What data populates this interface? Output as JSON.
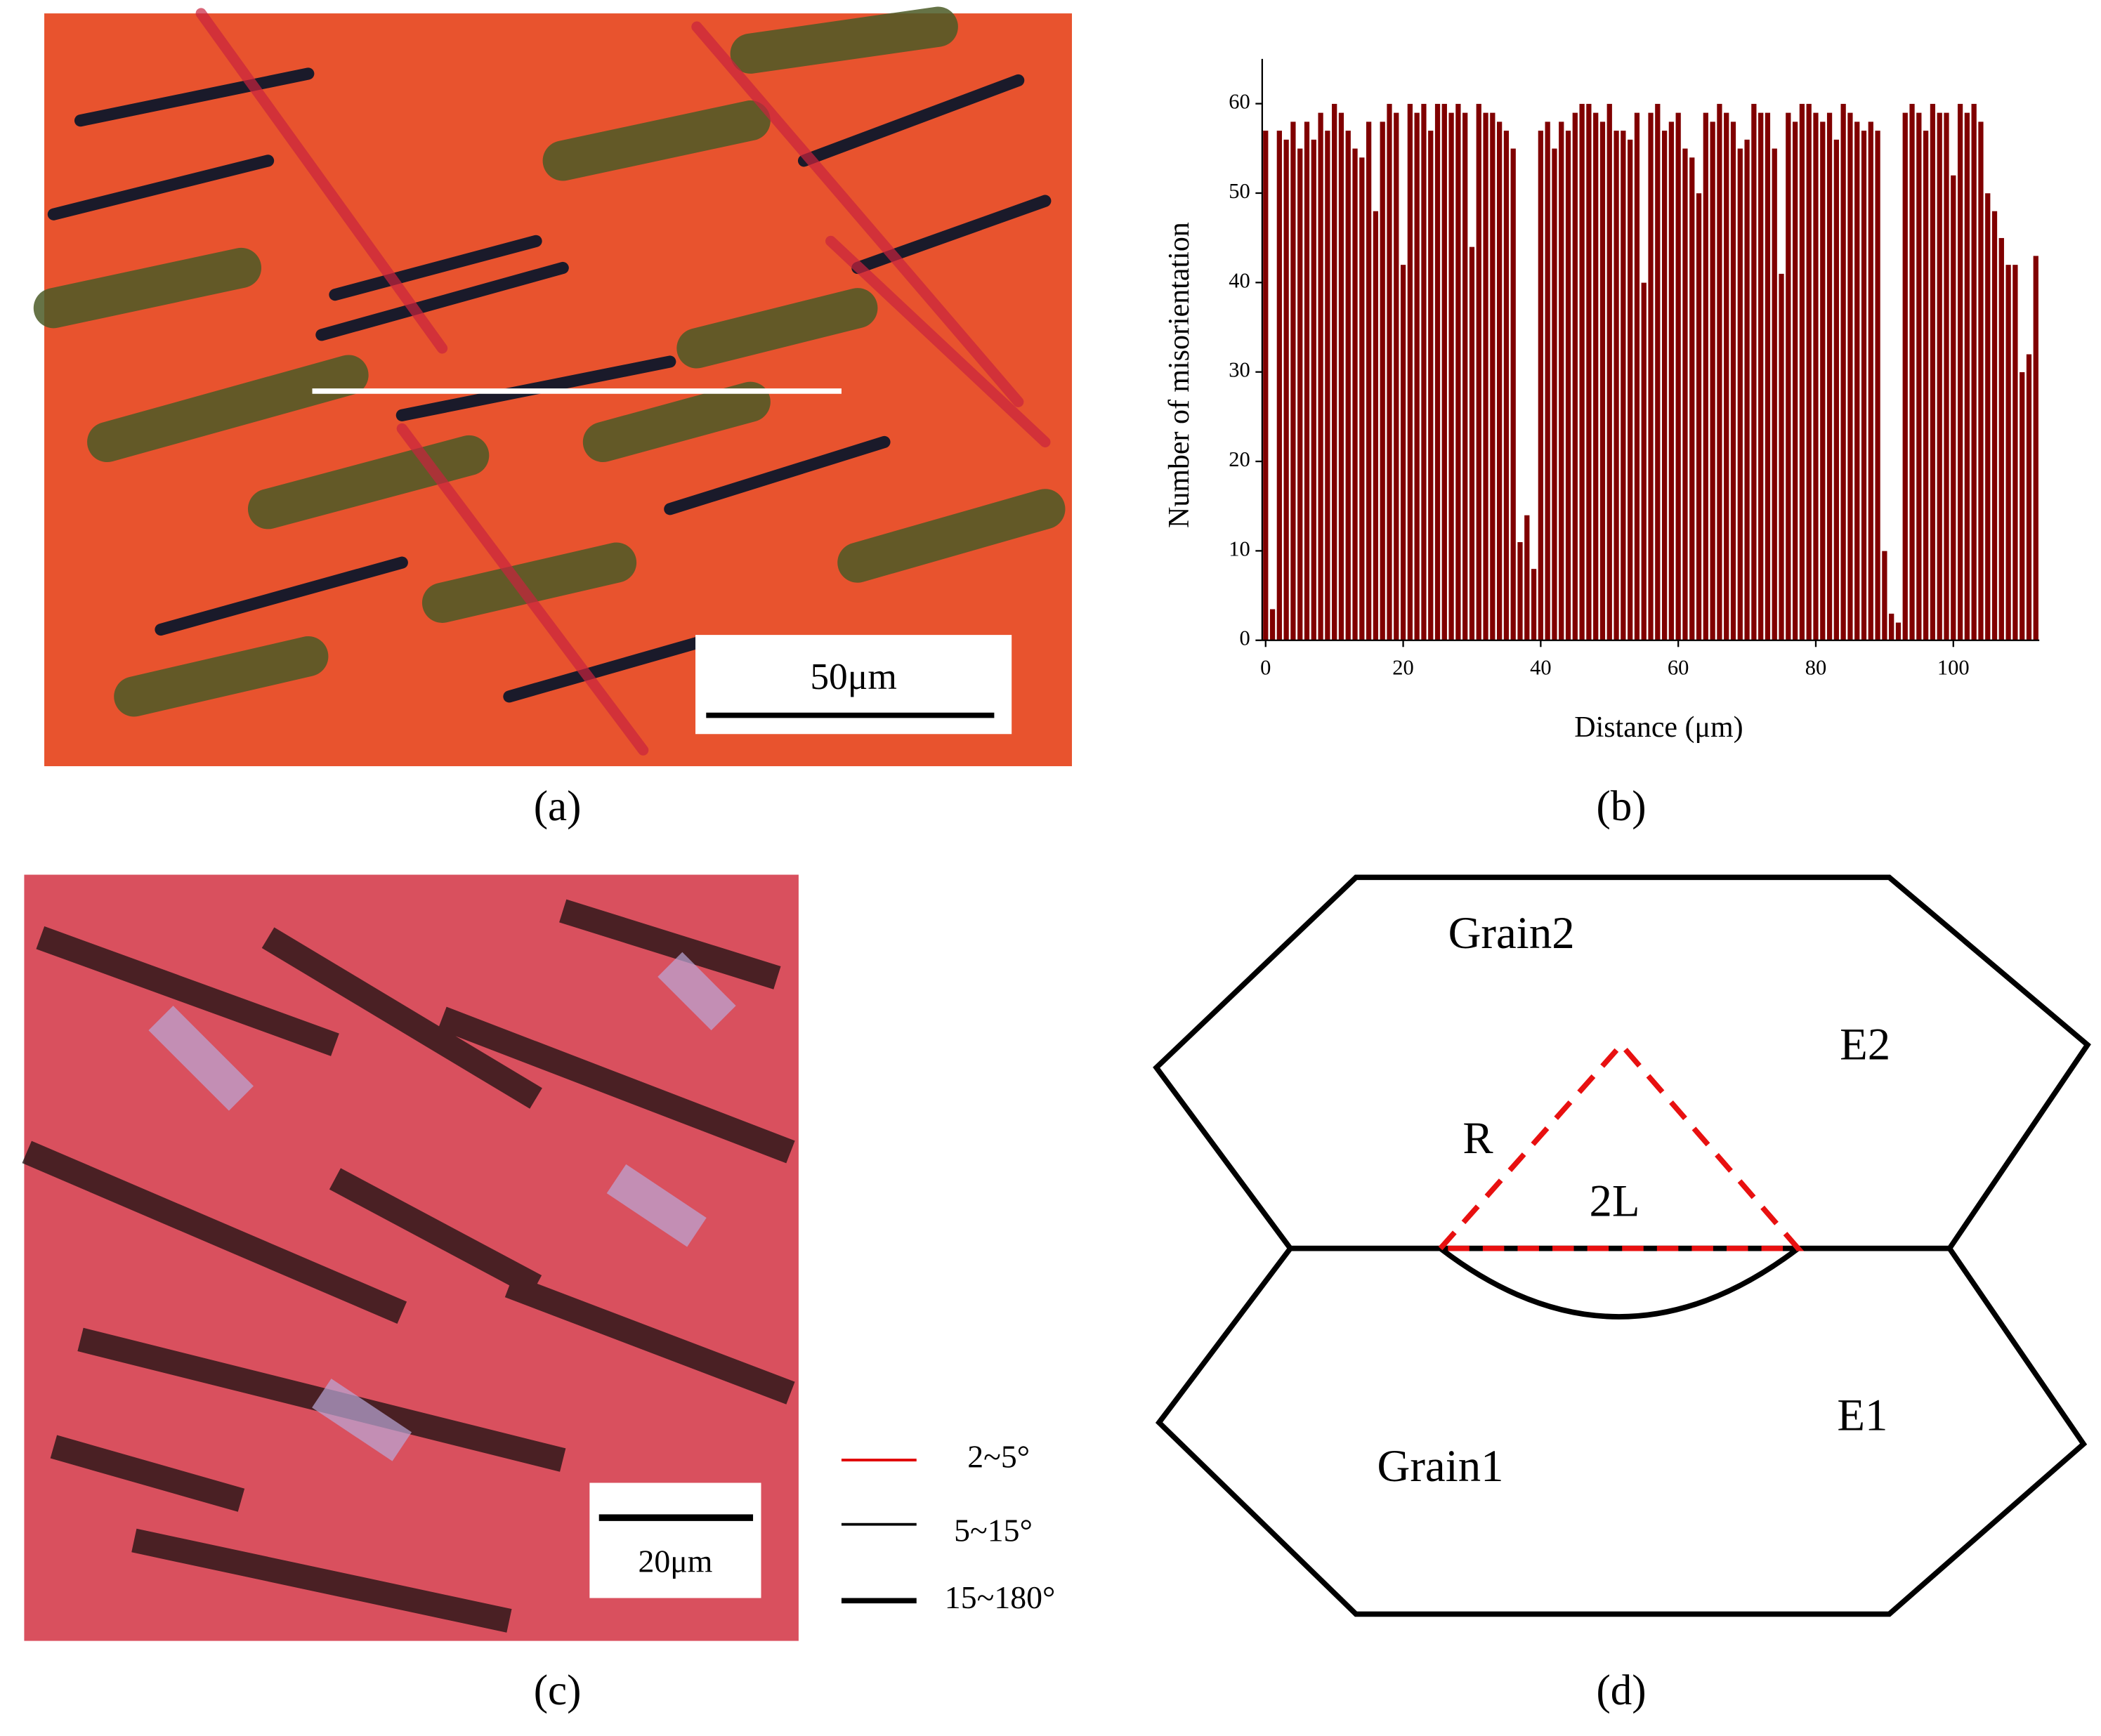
{
  "panel_a": {
    "scale_bar": "50μm",
    "caption": "(a)"
  },
  "chart_data": {
    "type": "bar",
    "y_label": "Number of misorientation",
    "x_label": "Distance (μm)",
    "color": "#800000",
    "x": [
      0,
      1,
      2,
      3,
      4,
      5,
      6,
      7,
      8,
      9,
      10,
      11,
      12,
      13,
      14,
      15,
      16,
      17,
      18,
      19,
      20,
      21,
      22,
      23,
      24,
      25,
      26,
      27,
      28,
      29,
      30,
      31,
      32,
      33,
      34,
      35,
      36,
      37,
      38,
      39,
      40,
      41,
      42,
      43,
      44,
      45,
      46,
      47,
      48,
      49,
      50,
      51,
      52,
      53,
      54,
      55,
      56,
      57,
      58,
      59,
      60,
      61,
      62,
      63,
      64,
      65,
      66,
      67,
      68,
      69,
      70,
      71,
      72,
      73,
      74,
      75,
      76,
      77,
      78,
      79,
      80,
      81,
      82,
      83,
      84,
      85,
      86,
      87,
      88,
      89,
      90,
      91,
      92,
      93,
      94,
      95,
      96,
      97,
      98,
      99,
      100,
      101,
      102,
      103,
      104,
      105,
      106,
      107,
      108,
      109,
      110,
      111,
      112
    ],
    "values": [
      57,
      3.5,
      57,
      56,
      58,
      55,
      58,
      56,
      59,
      57,
      60,
      59,
      57,
      55,
      54,
      58,
      48,
      58,
      60,
      59,
      42,
      60,
      59,
      60,
      57,
      60,
      60,
      59,
      60,
      59,
      44,
      60,
      59,
      59,
      58,
      57,
      55,
      11,
      14,
      8,
      57,
      58,
      55,
      58,
      57,
      59,
      60,
      60,
      59,
      58,
      60,
      57,
      57,
      56,
      59,
      40,
      59,
      60,
      57,
      58,
      59,
      55,
      54,
      50,
      59,
      58,
      60,
      59,
      58,
      55,
      56,
      60,
      59,
      59,
      55,
      41,
      59,
      58,
      60,
      60,
      59,
      58,
      59,
      56,
      60,
      59,
      58,
      57,
      58,
      57,
      10,
      3,
      2,
      59,
      60,
      59,
      57,
      60,
      59,
      59,
      52,
      60,
      59,
      60,
      58,
      50,
      48,
      45,
      42,
      42,
      30,
      32,
      43
    ],
    "xlim": [
      -0.5,
      112.5
    ],
    "ylim": [
      0,
      65
    ],
    "xticks": [
      0,
      20,
      40,
      60,
      80,
      100
    ],
    "yticks": [
      0,
      10,
      20,
      30,
      40,
      50,
      60
    ],
    "caption": "(b)"
  },
  "panel_c": {
    "scale_bar": "20μm",
    "legend": [
      "2~5°",
      "5~15°",
      "15~180°"
    ],
    "caption": "(c)"
  },
  "panel_d": {
    "labels": [
      "Grain2",
      "E2",
      "R",
      "2L",
      "E1",
      "Grain1"
    ],
    "caption": "(d)"
  }
}
